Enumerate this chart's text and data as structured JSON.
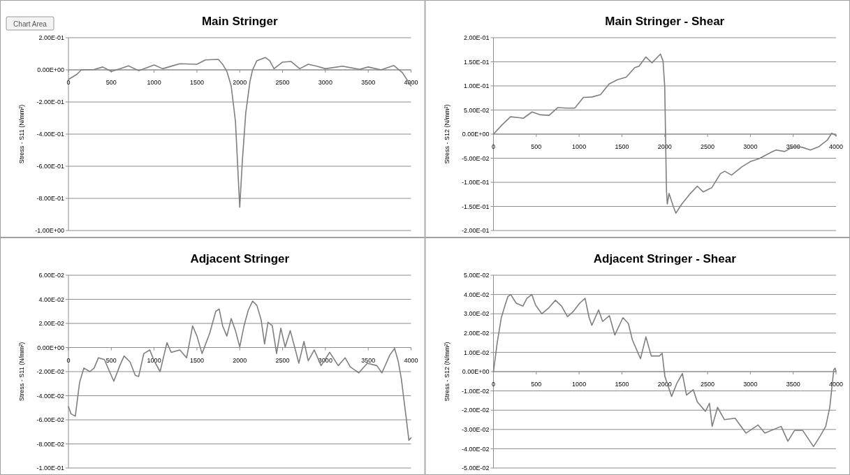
{
  "chart_data": [
    {
      "type": "line",
      "title": "Main Stringer",
      "ylabel": "Stress - S11 (N/mm²)",
      "annotations": [
        "Chart Area"
      ],
      "grid": "y",
      "xlim": [
        0,
        4000
      ],
      "xticks": [
        0,
        500,
        1000,
        1500,
        2000,
        2500,
        3000,
        3500,
        4000
      ],
      "ylim": [
        -1,
        0.2
      ],
      "yticks": [
        {
          "value": 0.2,
          "label": "2.00E-01"
        },
        {
          "value": 0,
          "label": "0.00E+00"
        },
        {
          "value": -0.2,
          "label": "-2.00E-01"
        },
        {
          "value": -0.4,
          "label": "-4.00E-01"
        },
        {
          "value": -0.6,
          "label": "-6.00E-01"
        },
        {
          "value": -0.8,
          "label": "-8.00E-01"
        },
        {
          "value": -1,
          "label": "-1.00E+00"
        }
      ],
      "series": [
        {
          "color": "#7f7f7f",
          "x": [
            0,
            100,
            150,
            300,
            400,
            500,
            600,
            700,
            820,
            1000,
            1100,
            1300,
            1500,
            1600,
            1750,
            1800,
            1850,
            1900,
            1950,
            2000,
            2030,
            2070,
            2120,
            2150,
            2200,
            2300,
            2350,
            2400,
            2500,
            2600,
            2700,
            2800,
            2900,
            3000,
            3200,
            3400,
            3500,
            3650,
            3800,
            3900,
            4000
          ],
          "values": [
            -0.06,
            -0.027,
            0,
            0.002,
            0.018,
            -0.01,
            0.007,
            0.025,
            -0.005,
            0.03,
            0.007,
            0.038,
            0.035,
            0.062,
            0.065,
            0.035,
            -0.01,
            -0.1,
            -0.32,
            -0.855,
            -0.57,
            -0.27,
            -0.07,
            0,
            0.057,
            0.077,
            0.057,
            0.007,
            0.048,
            0.052,
            0.007,
            0.035,
            0.023,
            0.007,
            0.023,
            0.003,
            0.018,
            0,
            0.027,
            -0.018,
            -0.1
          ]
        }
      ]
    },
    {
      "type": "line",
      "title": "Main Stringer - Shear",
      "ylabel": "Stress - S12 (N/mm²)",
      "grid": "y",
      "xlim": [
        0,
        4000
      ],
      "xticks": [
        0,
        500,
        1000,
        1500,
        2000,
        2500,
        3000,
        3500,
        4000
      ],
      "ylim": [
        -0.2,
        0.2
      ],
      "yticks": [
        {
          "value": 0.2,
          "label": "2.00E-01"
        },
        {
          "value": 0.15,
          "label": "1.50E-01"
        },
        {
          "value": 0.1,
          "label": "1.00E-01"
        },
        {
          "value": 0.05,
          "label": "5.00E-02"
        },
        {
          "value": 0,
          "label": "0.00E+00"
        },
        {
          "value": -0.05,
          "label": "-5.00E-02"
        },
        {
          "value": -0.1,
          "label": "-1.00E-01"
        },
        {
          "value": -0.15,
          "label": "-1.50E-01"
        },
        {
          "value": -0.2,
          "label": "-2.00E-01"
        }
      ],
      "series": [
        {
          "color": "#7f7f7f",
          "x": [
            0,
            100,
            200,
            300,
            350,
            450,
            550,
            650,
            750,
            850,
            950,
            1050,
            1150,
            1250,
            1350,
            1450,
            1550,
            1650,
            1700,
            1780,
            1850,
            1950,
            1980,
            2000,
            2020,
            2030,
            2050,
            2100,
            2130,
            2200,
            2300,
            2380,
            2450,
            2550,
            2650,
            2700,
            2780,
            2900,
            3000,
            3100,
            3250,
            3300,
            3400,
            3500,
            3600,
            3700,
            3800,
            3900,
            3950,
            4000
          ],
          "values": [
            0,
            0.019,
            0.036,
            0.034,
            0.033,
            0.046,
            0.04,
            0.039,
            0.055,
            0.054,
            0.054,
            0.076,
            0.077,
            0.082,
            0.104,
            0.113,
            0.118,
            0.138,
            0.141,
            0.16,
            0.148,
            0.166,
            0.152,
            0.098,
            -0.116,
            -0.145,
            -0.123,
            -0.15,
            -0.164,
            -0.145,
            -0.123,
            -0.108,
            -0.12,
            -0.111,
            -0.082,
            -0.077,
            -0.085,
            -0.068,
            -0.057,
            -0.051,
            -0.037,
            -0.033,
            -0.036,
            -0.026,
            -0.027,
            -0.033,
            -0.026,
            -0.012,
            0.002,
            -0.003
          ]
        }
      ]
    },
    {
      "type": "line",
      "title": "Adjacent Stringer",
      "ylabel": "Stress - S11 (N/mm²)",
      "grid": "y",
      "xlim": [
        0,
        4000
      ],
      "xticks": [
        0,
        500,
        1000,
        1500,
        2000,
        2500,
        3000,
        3500,
        4000
      ],
      "ylim": [
        -0.1,
        0.06
      ],
      "yticks": [
        {
          "value": 0.06,
          "label": "6.00E-02"
        },
        {
          "value": 0.04,
          "label": "4.00E-02"
        },
        {
          "value": 0.02,
          "label": "2.00E-02"
        },
        {
          "value": 0,
          "label": "0.00E+00"
        },
        {
          "value": -0.02,
          "label": "-2.00E-02"
        },
        {
          "value": -0.04,
          "label": "-4.00E-02"
        },
        {
          "value": -0.06,
          "label": "-6.00E-02"
        },
        {
          "value": -0.08,
          "label": "-8.00E-02"
        },
        {
          "value": -0.1,
          "label": "-1.00E-01"
        }
      ],
      "series": [
        {
          "color": "#7f7f7f",
          "x": [
            0,
            30,
            80,
            130,
            180,
            250,
            300,
            350,
            420,
            480,
            530,
            600,
            650,
            720,
            780,
            820,
            880,
            950,
            1000,
            1070,
            1150,
            1200,
            1300,
            1380,
            1450,
            1500,
            1560,
            1650,
            1720,
            1760,
            1800,
            1850,
            1900,
            1950,
            2000,
            2050,
            2100,
            2150,
            2200,
            2250,
            2290,
            2330,
            2380,
            2430,
            2480,
            2530,
            2590,
            2650,
            2690,
            2750,
            2800,
            2870,
            2950,
            3050,
            3150,
            3230,
            3290,
            3390,
            3490,
            3600,
            3660,
            3754,
            3808,
            3849,
            3887,
            3918,
            3943,
            3975,
            4000
          ],
          "values": [
            -0.049,
            -0.055,
            -0.057,
            -0.029,
            -0.017,
            -0.02,
            -0.017,
            -0.0085,
            -0.01,
            -0.02,
            -0.028,
            -0.015,
            -0.007,
            -0.012,
            -0.023,
            -0.024,
            -0.005,
            -0.002,
            -0.011,
            -0.02,
            0.004,
            -0.004,
            -0.002,
            -0.0085,
            0.018,
            0.0095,
            -0.005,
            0.012,
            0.03,
            0.032,
            0.018,
            0.0095,
            0.024,
            0.014,
            0.0005,
            0.018,
            0.031,
            0.0385,
            0.035,
            0.023,
            0.003,
            0.021,
            0.018,
            -0.005,
            0.016,
            0.0005,
            0.014,
            -0.002,
            -0.013,
            0.005,
            -0.011,
            -0.002,
            -0.015,
            -0.004,
            -0.015,
            -0.0085,
            -0.016,
            -0.021,
            -0.013,
            -0.015,
            -0.021,
            -0.006,
            -0.0007,
            -0.011,
            -0.026,
            -0.044,
            -0.058,
            -0.077,
            -0.075
          ]
        }
      ]
    },
    {
      "type": "line",
      "title": "Adjacent Stringer - Shear",
      "ylabel": "Stress - S12 (N/mm²)",
      "grid": "y",
      "xlim": [
        0,
        4000
      ],
      "xticks": [
        0,
        500,
        1000,
        1500,
        2000,
        2500,
        3000,
        3500,
        4000
      ],
      "ylim": [
        -0.05,
        0.05
      ],
      "yticks": [
        {
          "value": 0.05,
          "label": "5.00E-02"
        },
        {
          "value": 0.04,
          "label": "4.00E-02"
        },
        {
          "value": 0.03,
          "label": "3.00E-02"
        },
        {
          "value": 0.02,
          "label": "2.00E-02"
        },
        {
          "value": 0.01,
          "label": "1.00E-02"
        },
        {
          "value": 0,
          "label": "0.00E+00"
        },
        {
          "value": -0.01,
          "label": "-1.00E-02"
        },
        {
          "value": -0.02,
          "label": "-2.00E-02"
        },
        {
          "value": -0.03,
          "label": "-3.00E-02"
        },
        {
          "value": -0.04,
          "label": "-4.00E-02"
        },
        {
          "value": -0.05,
          "label": "-5.00E-02"
        }
      ],
      "series": [
        {
          "color": "#7f7f7f",
          "x": [
            0,
            44,
            92,
            139,
            170,
            202,
            265,
            344,
            391,
            448,
            492,
            565,
            644,
            723,
            795,
            865,
            928,
            1007,
            1070,
            1117,
            1149,
            1228,
            1275,
            1354,
            1417,
            1512,
            1575,
            1622,
            1717,
            1780,
            1843,
            1938,
            1970,
            2001,
            2080,
            2143,
            2206,
            2254,
            2333,
            2380,
            2475,
            2522,
            2554,
            2617,
            2696,
            2822,
            2948,
            3090,
            3169,
            3359,
            3438,
            3516,
            3611,
            3737,
            3816,
            3880,
            3927,
            3974,
            3990,
            4000
          ],
          "values": [
            0,
            0.015,
            0.028,
            0.035,
            0.039,
            0.04,
            0.0355,
            0.034,
            0.038,
            0.04,
            0.0345,
            0.03,
            0.033,
            0.037,
            0.034,
            0.0285,
            0.031,
            0.0355,
            0.038,
            0.028,
            0.024,
            0.032,
            0.026,
            0.029,
            0.019,
            0.028,
            0.025,
            0.0165,
            0.0067,
            0.018,
            0.0081,
            0.0081,
            0.0095,
            -0.0024,
            -0.0129,
            -0.0059,
            -0.001,
            -0.0122,
            -0.0094,
            -0.0157,
            -0.0206,
            -0.0164,
            -0.0284,
            -0.0185,
            -0.0249,
            -0.0242,
            -0.0319,
            -0.0277,
            -0.0319,
            -0.0284,
            -0.0361,
            -0.0305,
            -0.0305,
            -0.0389,
            -0.0333,
            -0.0284,
            -0.0185,
            0.0011,
            0.0018,
            0
          ]
        }
      ]
    }
  ]
}
